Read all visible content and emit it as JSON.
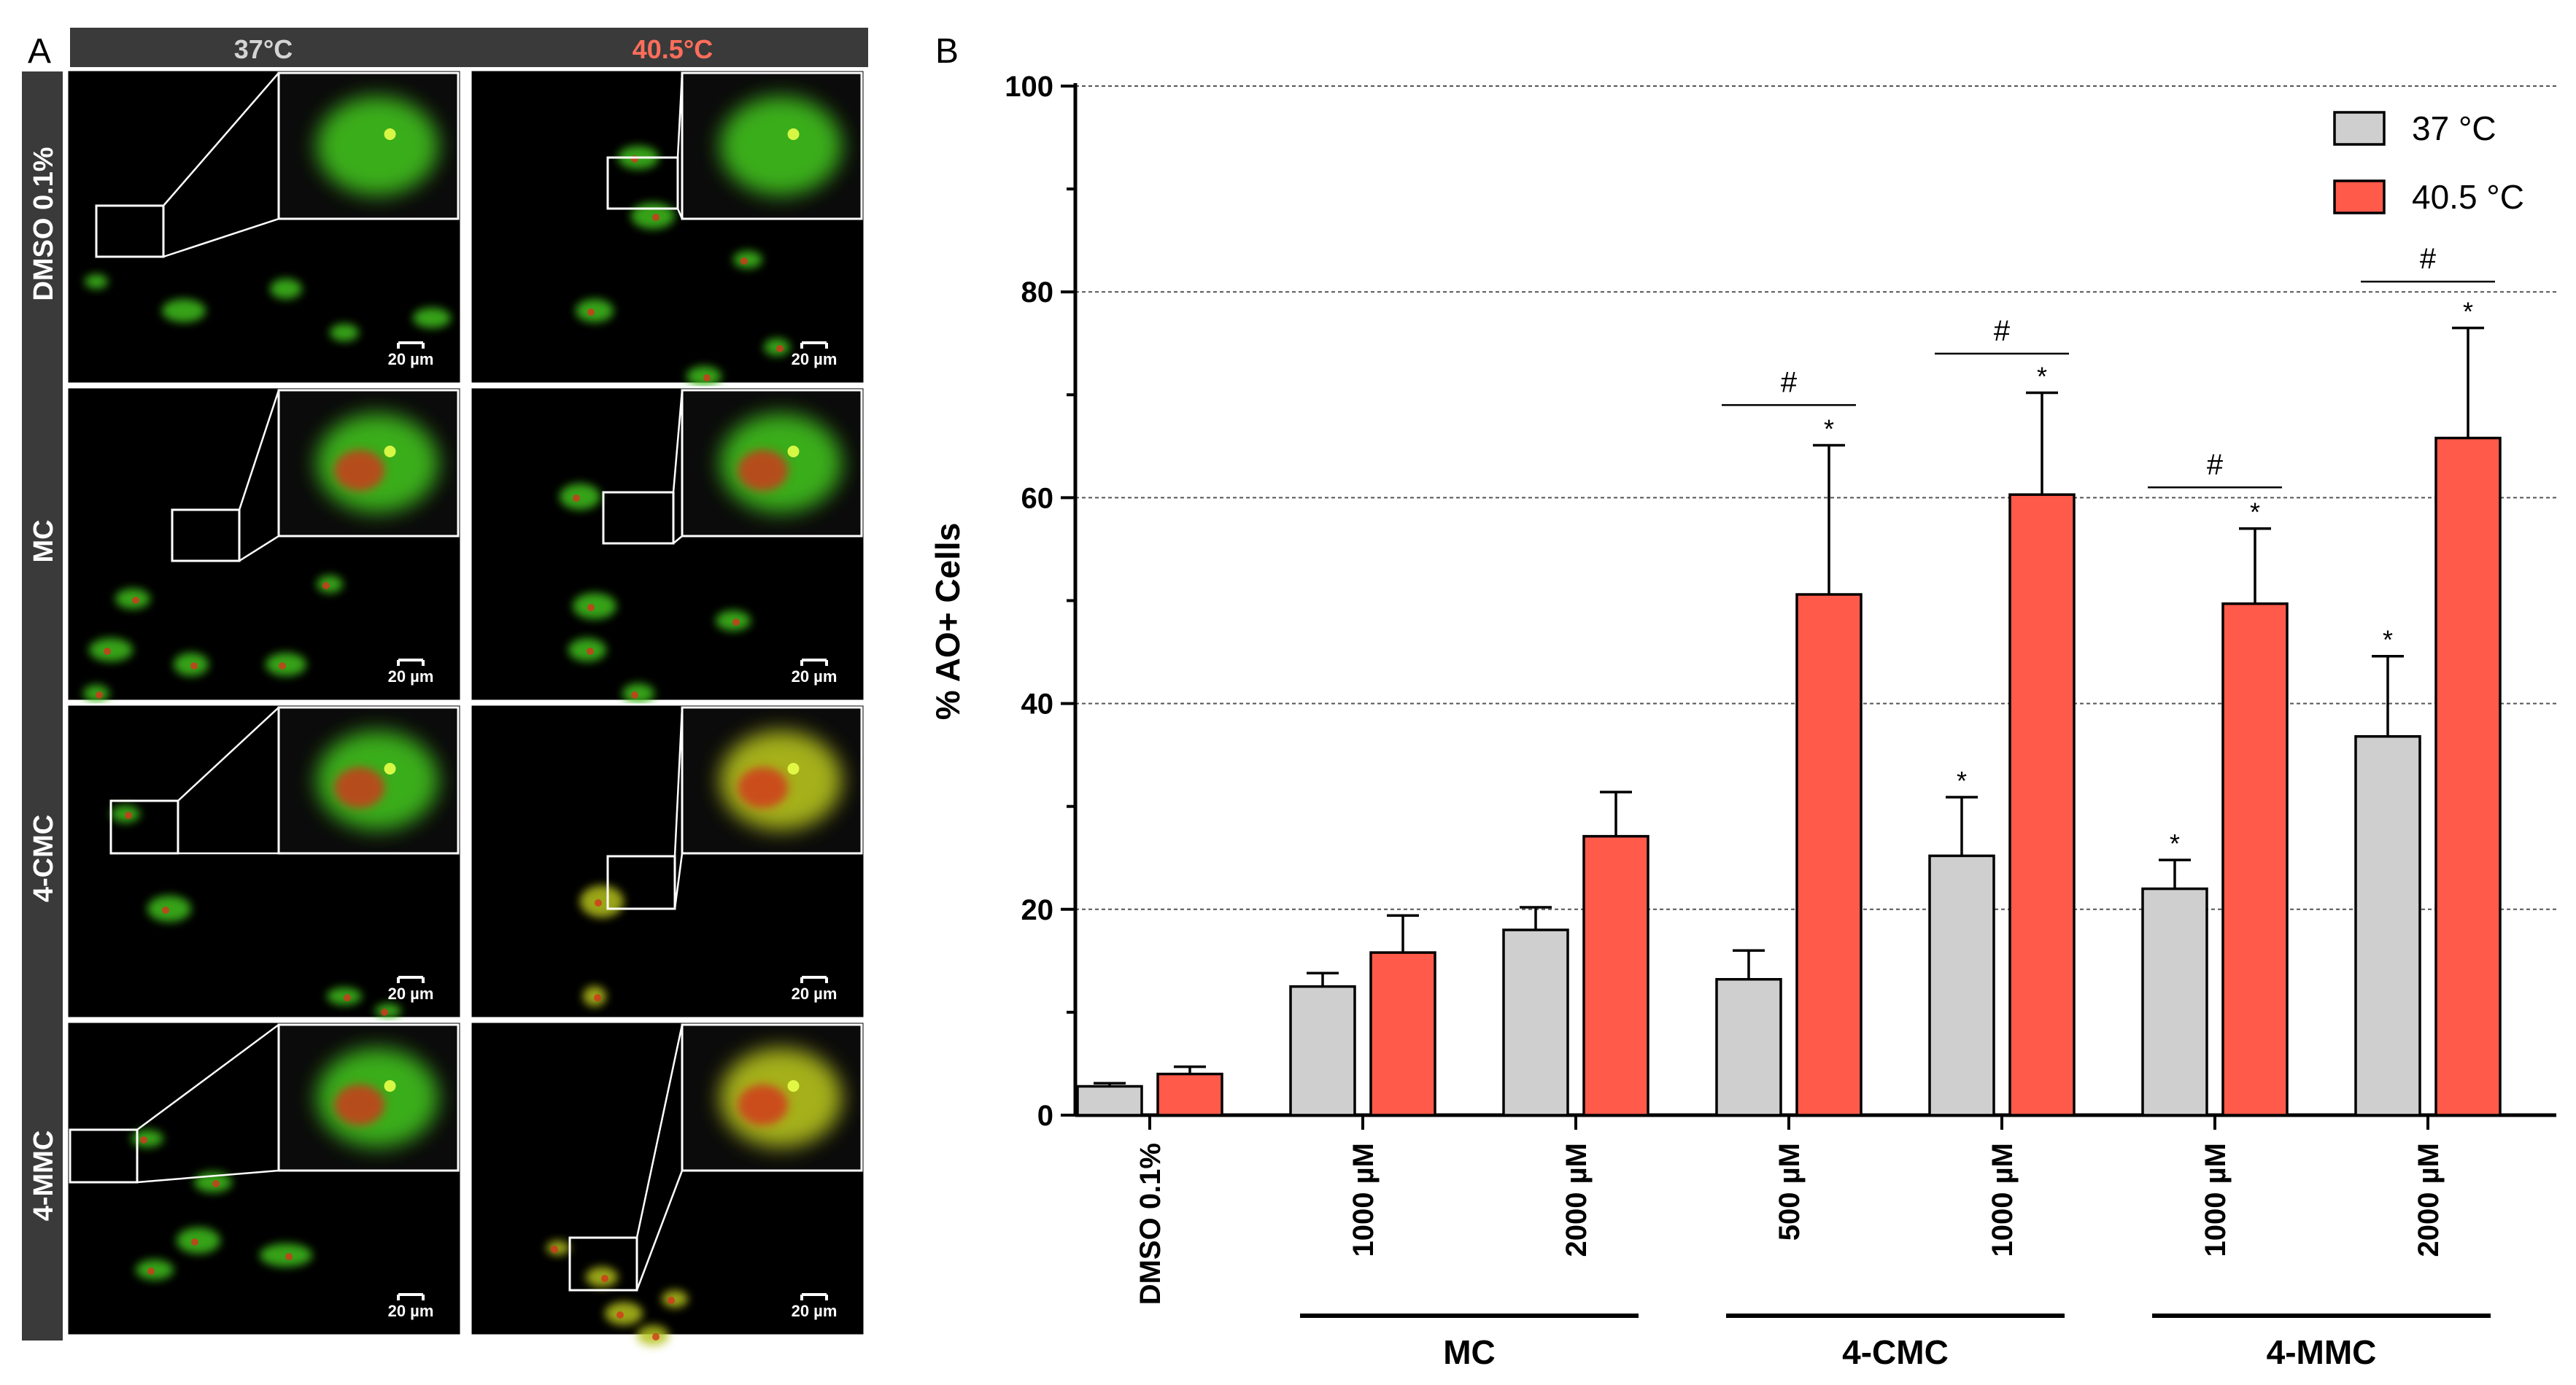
{
  "panel_a": {
    "letter": "A",
    "headers": [
      {
        "label": "37°C",
        "color": "#d4d4d4"
      },
      {
        "label": "40.5°C",
        "color": "#ff6e5a"
      }
    ],
    "rows": [
      "DMSO 0.1%",
      "MC",
      "4-CMC",
      "4-MMC"
    ],
    "scale_bar_label": "20 µm",
    "colors": {
      "background": "#000000",
      "header_bg": "#3a3a3a",
      "cell_green": "#3fbf1f",
      "cell_red": "#d4361c",
      "cell_yellow": "#b6c21a"
    }
  },
  "chart_data": {
    "panel_letter": "B",
    "type": "bar",
    "ylabel": "% AO+ Cells",
    "ylim": [
      0,
      100
    ],
    "yticks": [
      "0",
      "20",
      "40",
      "60",
      "80",
      "100"
    ],
    "grid": "dashed horizontal",
    "legend_position": "top-right",
    "categories": [
      "DMSO 0.1%",
      "1000 µM",
      "2000 µM",
      "500 µM",
      "1000 µM",
      "1000 µM",
      "2000 µM"
    ],
    "groups": [
      {
        "label": "",
        "start": 0,
        "end": 0
      },
      {
        "label": "MC",
        "start": 1,
        "end": 2
      },
      {
        "label": "4-CMC",
        "start": 3,
        "end": 4
      },
      {
        "label": "4-MMC",
        "start": 5,
        "end": 6
      }
    ],
    "series": [
      {
        "name": "37 °C",
        "color": "#cfcfcf",
        "values": [
          2.8,
          12.5,
          18.0,
          13.2,
          25.2,
          22.0,
          36.8
        ],
        "errors": [
          0.3,
          1.3,
          2.2,
          2.8,
          5.7,
          2.8,
          7.8
        ],
        "marks": [
          "",
          "",
          "",
          "",
          "*",
          "*",
          "*"
        ]
      },
      {
        "name": "40.5 °C",
        "color": "#ff5a4a",
        "values": [
          4.0,
          15.8,
          27.1,
          50.6,
          60.3,
          49.7,
          65.8
        ],
        "errors": [
          0.7,
          3.6,
          4.3,
          14.5,
          9.9,
          7.3,
          10.7
        ],
        "marks": [
          "",
          "",
          "",
          "*",
          "*",
          "*",
          "*"
        ]
      }
    ],
    "significance": [
      {
        "category": 3,
        "label": "#",
        "y": 69
      },
      {
        "category": 4,
        "label": "#",
        "y": 74
      },
      {
        "category": 5,
        "label": "#",
        "y": 61
      },
      {
        "category": 6,
        "label": "#",
        "y": 81
      }
    ]
  }
}
